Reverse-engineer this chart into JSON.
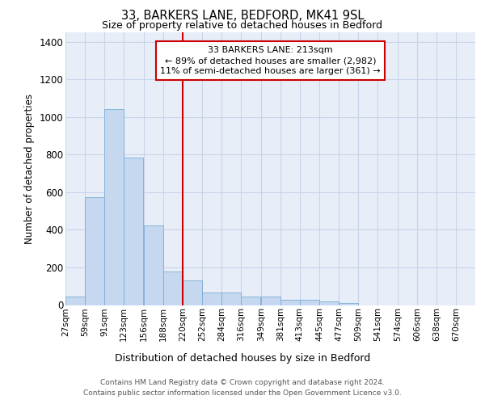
{
  "title_line1": "33, BARKERS LANE, BEDFORD, MK41 9SL",
  "title_line2": "Size of property relative to detached houses in Bedford",
  "xlabel": "Distribution of detached houses by size in Bedford",
  "ylabel": "Number of detached properties",
  "bar_left_edges": [
    27,
    59,
    91,
    123,
    156,
    188,
    220,
    252,
    284,
    316,
    349,
    381,
    413,
    445,
    477,
    509,
    541,
    574,
    606,
    638
  ],
  "bar_heights": [
    45,
    575,
    1040,
    785,
    425,
    180,
    130,
    65,
    65,
    45,
    45,
    30,
    30,
    20,
    12,
    0,
    0,
    0,
    0,
    0
  ],
  "bar_color": "#c5d8f0",
  "bar_edge_color": "#7aadd4",
  "property_line_x": 220,
  "vline_color": "#cc0000",
  "annotation_text": "33 BARKERS LANE: 213sqm\n← 89% of detached houses are smaller (2,982)\n11% of semi-detached houses are larger (361) →",
  "annotation_box_color": "#cc0000",
  "ylim": [
    0,
    1450
  ],
  "yticks": [
    0,
    200,
    400,
    600,
    800,
    1000,
    1200,
    1400
  ],
  "xtick_labels": [
    "27sqm",
    "59sqm",
    "91sqm",
    "123sqm",
    "156sqm",
    "188sqm",
    "220sqm",
    "252sqm",
    "284sqm",
    "316sqm",
    "349sqm",
    "381sqm",
    "413sqm",
    "445sqm",
    "477sqm",
    "509sqm",
    "541sqm",
    "574sqm",
    "606sqm",
    "638sqm",
    "670sqm"
  ],
  "xtick_positions": [
    27,
    59,
    91,
    123,
    156,
    188,
    220,
    252,
    284,
    316,
    349,
    381,
    413,
    445,
    477,
    509,
    541,
    574,
    606,
    638,
    670
  ],
  "grid_color": "#c8d4e8",
  "background_color": "#e8eef8",
  "footer_text": "Contains HM Land Registry data © Crown copyright and database right 2024.\nContains public sector information licensed under the Open Government Licence v3.0.",
  "figsize": [
    6.0,
    5.0
  ],
  "dpi": 100
}
